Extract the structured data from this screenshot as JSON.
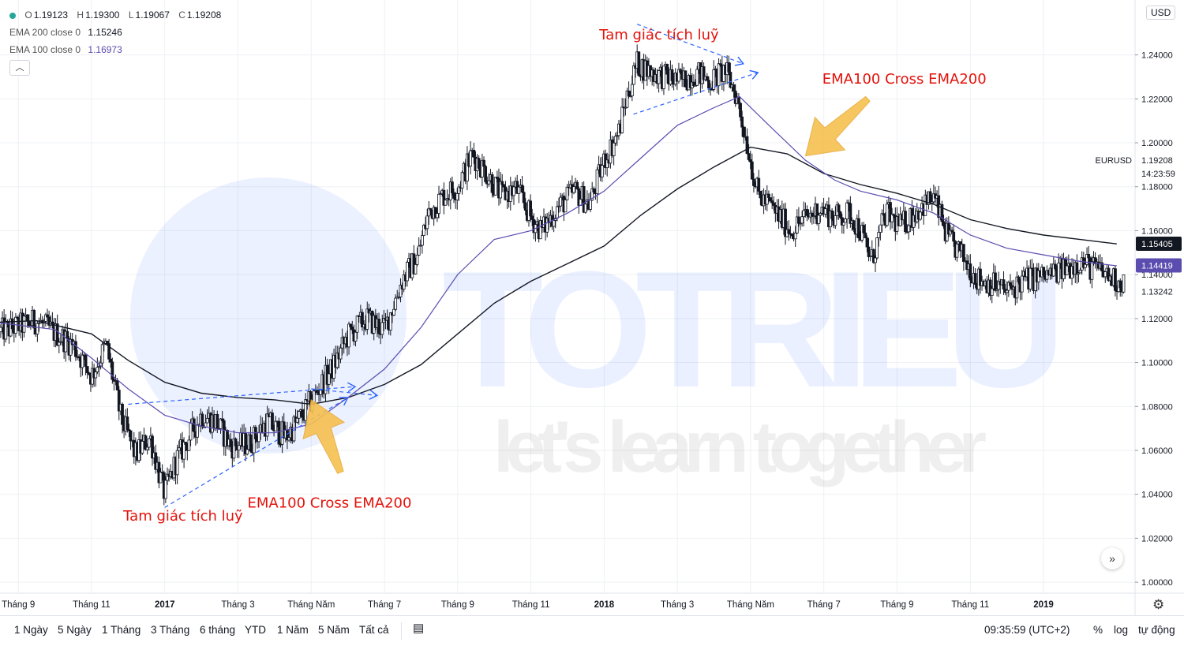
{
  "legend": {
    "ohlc": {
      "o_label": "O",
      "o": "1.19123",
      "h_label": "H",
      "h": "1.19300",
      "l_label": "L",
      "l": "1.19067",
      "c_label": "C",
      "c": "1.19208"
    },
    "ema200": {
      "label": "EMA 200 close 0",
      "value": "1.15246",
      "color": "#131722"
    },
    "ema100": {
      "label": "EMA 100 close 0",
      "value": "1.16973",
      "color": "#5b4db0"
    },
    "collapse_icon": "chevron-up-icon"
  },
  "currency_badge": "USD",
  "symbol_label": "EURUSD",
  "price_tags": [
    {
      "name": "last-price",
      "text": "1.19208",
      "value": 1.19208,
      "bg": "#ffffff",
      "fg": "#131722"
    },
    {
      "name": "countdown",
      "text": "14:23:59",
      "value": 1.186,
      "bg": "#ffffff",
      "fg": "#131722"
    },
    {
      "name": "ema200-price",
      "text": "1.15405",
      "value": 1.15405,
      "bg": "#131722",
      "fg": "#ffffff"
    },
    {
      "name": "ema100-price",
      "text": "1.14419",
      "value": 1.14419,
      "bg": "#5b4db0",
      "fg": "#ffffff"
    },
    {
      "name": "close-price",
      "text": "1.13242",
      "value": 1.13242,
      "bg": "#ffffff",
      "fg": "#131722"
    }
  ],
  "watermark": {
    "brand": "TOTRIEU",
    "slogan": "let's learn together"
  },
  "annotations": [
    {
      "name": "triangle-label-top",
      "text": "Tam giác tích luỹ"
    },
    {
      "name": "cross-label-top",
      "text": "EMA100 Cross EMA200"
    },
    {
      "name": "triangle-label-bottom",
      "text": "Tam giác tích luỹ"
    },
    {
      "name": "cross-label-bottom",
      "text": "EMA100 Cross EMA200"
    }
  ],
  "bottom_bar": {
    "ranges": [
      "1 Ngày",
      "5 Ngày",
      "1 Tháng",
      "3 Tháng",
      "6 tháng",
      "YTD",
      "1 Năm",
      "5 Năm",
      "Tất cả"
    ],
    "calendar_icon": "calendar-icon",
    "time": "09:35:59 (UTC+2)",
    "options": [
      "%",
      "log",
      "tự động"
    ],
    "settings_icon": "gear-icon",
    "scroll_icon": "double-chevron-right-icon"
  },
  "colors": {
    "up": "#131722",
    "down": "#131722",
    "annotation": "#e3120b",
    "arrow": "#f6c04f",
    "trend": "#2962ff",
    "grid": "#eef0f3"
  },
  "chart_data": {
    "type": "candlestick",
    "symbol": "EURUSD",
    "xlabel": "",
    "ylabel": "",
    "ylim": [
      0.995,
      1.265
    ],
    "y_ticks": [
      "1.00000",
      "1.02000",
      "1.04000",
      "1.06000",
      "1.08000",
      "1.10000",
      "1.12000",
      "1.14000",
      "1.16000",
      "1.18000",
      "1.20000",
      "1.22000",
      "1.24000"
    ],
    "x_ticks": [
      "Tháng 9",
      "Tháng 11",
      "2017",
      "Tháng 3",
      "Tháng Năm",
      "Tháng 7",
      "Tháng 9",
      "Tháng 11",
      "2018",
      "Tháng 3",
      "Tháng Năm",
      "Tháng 7",
      "Tháng 9",
      "Tháng 11",
      "2019"
    ],
    "x_tick_bold": [
      false,
      false,
      true,
      false,
      false,
      false,
      false,
      false,
      true,
      false,
      false,
      false,
      false,
      false,
      true
    ],
    "x_tick_months": [
      3,
      5,
      7,
      9,
      11,
      13,
      15,
      17,
      19,
      21,
      23,
      25,
      27,
      29,
      31
    ],
    "x_range_months": [
      2.5,
      33.5
    ],
    "price_path": [
      [
        0.5,
        1.112
      ],
      [
        1.5,
        1.116
      ],
      [
        2.5,
        1.114
      ],
      [
        3.5,
        1.119
      ],
      [
        4.5,
        1.108
      ],
      [
        5.0,
        1.094
      ],
      [
        5.4,
        1.108
      ],
      [
        5.8,
        1.075
      ],
      [
        6.2,
        1.058
      ],
      [
        6.6,
        1.066
      ],
      [
        6.9,
        1.046
      ],
      [
        7.0,
        1.04
      ],
      [
        7.3,
        1.055
      ],
      [
        7.7,
        1.067
      ],
      [
        8.0,
        1.076
      ],
      [
        8.4,
        1.073
      ],
      [
        8.8,
        1.062
      ],
      [
        9.3,
        1.063
      ],
      [
        9.8,
        1.073
      ],
      [
        10.3,
        1.066
      ],
      [
        10.8,
        1.077
      ],
      [
        11.2,
        1.088
      ],
      [
        11.6,
        1.098
      ],
      [
        12.0,
        1.112
      ],
      [
        12.5,
        1.12
      ],
      [
        13.0,
        1.115
      ],
      [
        13.5,
        1.138
      ],
      [
        13.9,
        1.148
      ],
      [
        14.2,
        1.168
      ],
      [
        14.6,
        1.176
      ],
      [
        15.0,
        1.18
      ],
      [
        15.4,
        1.195
      ],
      [
        15.8,
        1.186
      ],
      [
        16.2,
        1.176
      ],
      [
        16.6,
        1.179
      ],
      [
        17.0,
        1.166
      ],
      [
        17.3,
        1.16
      ],
      [
        17.7,
        1.17
      ],
      [
        18.2,
        1.178
      ],
      [
        18.6,
        1.172
      ],
      [
        19.0,
        1.192
      ],
      [
        19.4,
        1.205
      ],
      [
        19.6,
        1.22
      ],
      [
        19.9,
        1.236
      ],
      [
        20.3,
        1.232
      ],
      [
        20.7,
        1.23
      ],
      [
        21.1,
        1.228
      ],
      [
        21.5,
        1.232
      ],
      [
        21.9,
        1.228
      ],
      [
        22.3,
        1.233
      ],
      [
        22.6,
        1.222
      ],
      [
        22.9,
        1.2
      ],
      [
        23.2,
        1.176
      ],
      [
        23.5,
        1.172
      ],
      [
        23.8,
        1.166
      ],
      [
        24.1,
        1.16
      ],
      [
        24.5,
        1.166
      ],
      [
        24.9,
        1.17
      ],
      [
        25.3,
        1.166
      ],
      [
        25.7,
        1.168
      ],
      [
        26.0,
        1.16
      ],
      [
        26.3,
        1.146
      ],
      [
        26.7,
        1.168
      ],
      [
        27.1,
        1.162
      ],
      [
        27.6,
        1.17
      ],
      [
        28.0,
        1.175
      ],
      [
        28.4,
        1.156
      ],
      [
        28.8,
        1.148
      ],
      [
        29.2,
        1.138
      ],
      [
        29.6,
        1.136
      ],
      [
        30.0,
        1.132
      ],
      [
        30.5,
        1.138
      ],
      [
        31.0,
        1.139
      ],
      [
        31.5,
        1.142
      ],
      [
        32.0,
        1.146
      ],
      [
        32.5,
        1.142
      ],
      [
        33.0,
        1.137
      ]
    ],
    "ema100": [
      [
        0.5,
        1.116
      ],
      [
        2.5,
        1.118
      ],
      [
        4.0,
        1.115
      ],
      [
        5.0,
        1.102
      ],
      [
        6.0,
        1.088
      ],
      [
        7.0,
        1.076
      ],
      [
        8.0,
        1.071
      ],
      [
        9.0,
        1.068
      ],
      [
        10.0,
        1.068
      ],
      [
        11.0,
        1.072
      ],
      [
        12.0,
        1.084
      ],
      [
        13.0,
        1.097
      ],
      [
        14.0,
        1.116
      ],
      [
        15.0,
        1.14
      ],
      [
        16.0,
        1.156
      ],
      [
        17.0,
        1.16
      ],
      [
        18.0,
        1.168
      ],
      [
        19.0,
        1.178
      ],
      [
        20.0,
        1.193
      ],
      [
        21.0,
        1.208
      ],
      [
        22.0,
        1.216
      ],
      [
        22.7,
        1.221
      ],
      [
        23.5,
        1.208
      ],
      [
        24.5,
        1.192
      ],
      [
        25.3,
        1.183
      ],
      [
        26.0,
        1.178
      ],
      [
        27.0,
        1.174
      ],
      [
        28.0,
        1.168
      ],
      [
        29.0,
        1.158
      ],
      [
        30.0,
        1.152
      ],
      [
        31.0,
        1.149
      ],
      [
        32.0,
        1.146
      ],
      [
        33.0,
        1.144
      ]
    ],
    "ema200": [
      [
        0.5,
        1.117
      ],
      [
        3.5,
        1.119
      ],
      [
        5.0,
        1.113
      ],
      [
        6.0,
        1.101
      ],
      [
        7.0,
        1.091
      ],
      [
        8.0,
        1.086
      ],
      [
        9.0,
        1.084
      ],
      [
        10.0,
        1.083
      ],
      [
        11.0,
        1.081
      ],
      [
        12.0,
        1.084
      ],
      [
        13.0,
        1.09
      ],
      [
        14.0,
        1.099
      ],
      [
        15.0,
        1.113
      ],
      [
        16.0,
        1.127
      ],
      [
        17.0,
        1.137
      ],
      [
        18.0,
        1.145
      ],
      [
        19.0,
        1.153
      ],
      [
        20.0,
        1.167
      ],
      [
        21.0,
        1.179
      ],
      [
        22.0,
        1.189
      ],
      [
        23.0,
        1.198
      ],
      [
        24.0,
        1.195
      ],
      [
        25.0,
        1.186
      ],
      [
        26.0,
        1.181
      ],
      [
        27.0,
        1.177
      ],
      [
        28.0,
        1.172
      ],
      [
        29.0,
        1.165
      ],
      [
        30.0,
        1.161
      ],
      [
        31.0,
        1.158
      ],
      [
        32.0,
        1.156
      ],
      [
        33.0,
        1.154
      ]
    ],
    "trendlines": [
      [
        [
          6.0,
          1.081
        ],
        [
          12.2,
          1.089
        ]
      ],
      [
        [
          7.0,
          1.034
        ],
        [
          12.0,
          1.084
        ]
      ],
      [
        [
          11.0,
          1.088
        ],
        [
          12.8,
          1.085
        ]
      ],
      [
        [
          19.9,
          1.254
        ],
        [
          22.8,
          1.236
        ]
      ],
      [
        [
          19.8,
          1.213
        ],
        [
          23.2,
          1.232
        ]
      ]
    ],
    "arrows": [
      {
        "from": [
          11.8,
          1.05
        ],
        "to": [
          11.0,
          1.083
        ]
      },
      {
        "from": [
          26.2,
          1.22
        ],
        "to": [
          24.5,
          1.194
        ]
      }
    ],
    "annotation_positions": [
      [
        20.5,
        1.247
      ],
      [
        27.2,
        1.227
      ],
      [
        7.5,
        1.028
      ],
      [
        11.5,
        1.034
      ]
    ]
  }
}
